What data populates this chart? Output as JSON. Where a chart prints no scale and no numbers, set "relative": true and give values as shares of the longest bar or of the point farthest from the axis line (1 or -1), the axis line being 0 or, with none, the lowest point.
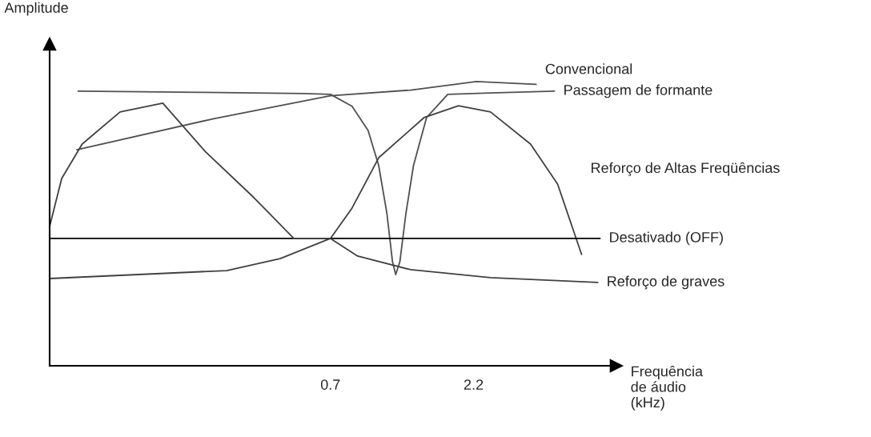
{
  "chart_data": {
    "type": "line",
    "relative": true,
    "log": "x",
    "ylabel": "Amplitude",
    "xlabel": "Frequência\nde áudio\n(kHz)",
    "xlim": [
      0.074,
      6.9
    ],
    "xticks": [
      0.7,
      2.2
    ],
    "tick_labels": "x",
    "grid": false,
    "legend": false,
    "marker": "none",
    "line_style": "solid",
    "series": [
      {
        "name": "Convencional",
        "color": "#505050",
        "x": [
          0.092,
          0.277,
          0.7,
          1.33,
          2.25,
          3.63
        ],
        "values": [
          0.76,
          0.87,
          0.95,
          0.97,
          1.0,
          0.99
        ]
      },
      {
        "name": "Passagem de formante",
        "color": "#505050",
        "x": [
          0.093,
          0.247,
          0.567,
          0.7,
          0.832,
          0.946,
          1.03,
          1.1,
          1.15,
          1.18,
          1.22,
          1.28,
          1.36,
          1.51,
          1.79,
          2.52,
          4.2
        ],
        "values": [
          0.966,
          0.962,
          0.958,
          0.955,
          0.913,
          0.828,
          0.704,
          0.535,
          0.366,
          0.321,
          0.366,
          0.535,
          0.704,
          0.873,
          0.955,
          0.96,
          0.966
        ]
      },
      {
        "name": "Reforço de Altas Freqüências",
        "color": "#404040",
        "x": [
          0.074,
          0.305,
          0.468,
          0.7,
          0.832,
          1.03,
          1.48,
          1.95,
          2.52,
          3.47,
          4.31,
          5.22
        ],
        "values": [
          0.307,
          0.335,
          0.377,
          0.448,
          0.555,
          0.732,
          0.873,
          0.915,
          0.893,
          0.78,
          0.639,
          0.392
        ]
      },
      {
        "name": "Desativado (OFF)",
        "color": "#000000",
        "x": [
          0.074,
          6.05
        ],
        "values": [
          0.448,
          0.448
        ]
      },
      {
        "name": "Reforço de graves",
        "color": "#404040",
        "x": [
          0.074,
          0.0815,
          0.096,
          0.13,
          0.183,
          0.258,
          0.379,
          0.522,
          0.7,
          0.87,
          1.33,
          2.52,
          5.94
        ],
        "values": [
          0.49,
          0.659,
          0.78,
          0.893,
          0.924,
          0.752,
          0.592,
          0.448,
          0.448,
          0.386,
          0.338,
          0.31,
          0.293
        ]
      }
    ]
  }
}
